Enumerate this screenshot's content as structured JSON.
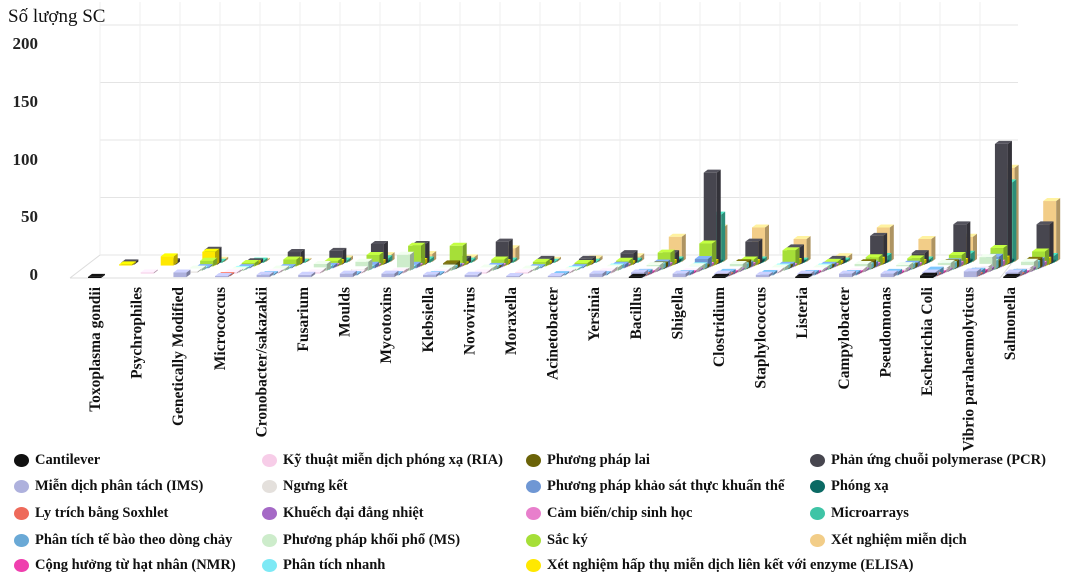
{
  "chart_data": {
    "type": "bar",
    "title": "",
    "ylabel": "Số lượng SC",
    "xlabel": "",
    "ylim": [
      0,
      220
    ],
    "yticks": [
      0,
      50,
      100,
      150,
      200
    ],
    "grid": true,
    "legend_position": "bottom",
    "categories": [
      "Toxoplasma gondii",
      "Psychrophiles",
      "Genetically Modified",
      "Micrococcus",
      "Cronobacter/sakazakii",
      "Fusarium",
      "Moulds",
      "Mycotoxins",
      "Klebsiella",
      "Novovirus",
      "Moraxella",
      "Acinetobacter",
      "Yersinia",
      "Bacillus",
      "Shigella",
      "Clostridium",
      "Staphylococcus",
      "Listeria",
      "Campylobacter",
      "Pseudomonas",
      "Escherichia Coli",
      "Vibrio parahaemolyticus",
      "Salmonella"
    ],
    "series": [
      {
        "name": "Cantilever",
        "color": "#111111",
        "values": [
          1,
          0,
          0,
          0,
          0,
          0,
          0,
          0,
          0,
          0,
          0,
          0,
          0,
          1,
          0,
          1,
          0,
          1,
          0,
          0,
          2,
          0,
          1
        ]
      },
      {
        "name": "Miễn dịch phân tách (IMS)",
        "color": "#aeb1dd",
        "values": [
          0,
          0,
          4,
          1,
          2,
          2,
          3,
          3,
          2,
          2,
          1,
          1,
          3,
          4,
          3,
          3,
          2,
          3,
          3,
          3,
          4,
          5,
          4
        ]
      },
      {
        "name": "Ly trích bằng Soxhlet",
        "color": "#ee6a5a",
        "values": [
          0,
          0,
          0,
          1,
          0,
          0,
          0,
          0,
          0,
          0,
          0,
          0,
          0,
          1,
          0,
          1,
          0,
          0,
          0,
          0,
          1,
          1,
          1
        ]
      },
      {
        "name": "Phân tích tế bào theo dòng chảy",
        "color": "#6aa9d6",
        "values": [
          0,
          0,
          0,
          0,
          1,
          0,
          1,
          1,
          1,
          0,
          0,
          1,
          1,
          3,
          2,
          3,
          2,
          2,
          2,
          3,
          5,
          4,
          3
        ]
      },
      {
        "name": "Cộng hưởng từ hạt nhân (NMR)",
        "color": "#ef3fae",
        "values": [
          0,
          0,
          0,
          0,
          0,
          0,
          0,
          0,
          0,
          0,
          0,
          0,
          0,
          1,
          1,
          1,
          0,
          1,
          1,
          1,
          1,
          2,
          1
        ]
      },
      {
        "name": "Kỹ thuật miễn dịch phóng xạ (RIA)",
        "color": "#f7cde8",
        "values": [
          0,
          1,
          0,
          1,
          1,
          1,
          1,
          2,
          1,
          1,
          1,
          1,
          2,
          2,
          2,
          2,
          1,
          1,
          2,
          1,
          2,
          3,
          2
        ]
      },
      {
        "name": "Ngưng kết",
        "color": "#e4e0dc",
        "values": [
          0,
          0,
          1,
          1,
          1,
          2,
          3,
          2,
          2,
          2,
          1,
          1,
          3,
          3,
          3,
          3,
          2,
          2,
          3,
          3,
          4,
          5,
          4
        ]
      },
      {
        "name": "Khuếch đại đẳng nhiệt",
        "color": "#a569c6",
        "values": [
          0,
          0,
          0,
          0,
          0,
          0,
          0,
          0,
          0,
          0,
          0,
          0,
          0,
          1,
          1,
          1,
          0,
          1,
          1,
          1,
          1,
          2,
          2
        ]
      },
      {
        "name": "Phương pháp khối phổ (MS)",
        "color": "#cdeccb",
        "values": [
          0,
          0,
          2,
          1,
          2,
          6,
          8,
          14,
          3,
          3,
          2,
          1,
          3,
          5,
          4,
          6,
          3,
          3,
          6,
          5,
          7,
          12,
          8
        ]
      },
      {
        "name": "Phân tích nhanh",
        "color": "#7de9f5",
        "values": [
          0,
          0,
          1,
          1,
          1,
          2,
          2,
          2,
          2,
          2,
          1,
          1,
          3,
          4,
          4,
          4,
          3,
          3,
          4,
          4,
          5,
          7,
          6
        ]
      },
      {
        "name": "Phương pháp lai",
        "color": "#6b6308",
        "values": [
          0,
          0,
          0,
          0,
          0,
          0,
          0,
          0,
          5,
          1,
          0,
          0,
          0,
          4,
          2,
          6,
          2,
          2,
          6,
          3,
          6,
          6,
          8
        ]
      },
      {
        "name": "Phương pháp khảo sát thực khuẩn thể",
        "color": "#6f97d4",
        "values": [
          0,
          0,
          1,
          1,
          1,
          2,
          3,
          3,
          2,
          2,
          1,
          1,
          3,
          5,
          8,
          4,
          3,
          3,
          4,
          4,
          6,
          10,
          7
        ]
      },
      {
        "name": "Cảm biến/chip sinh học",
        "color": "#e87fcc",
        "values": [
          0,
          0,
          0,
          0,
          0,
          1,
          1,
          1,
          1,
          1,
          0,
          0,
          1,
          2,
          2,
          2,
          1,
          1,
          2,
          2,
          3,
          4,
          3
        ]
      },
      {
        "name": "Sắc ký",
        "color": "#a6df38",
        "values": [
          0,
          0,
          5,
          3,
          6,
          5,
          10,
          18,
          18,
          6,
          4,
          3,
          5,
          12,
          20,
          6,
          14,
          4,
          8,
          7,
          10,
          16,
          13
        ]
      },
      {
        "name": "Xét nghiệm hấp thụ miễn dịch liên kết với enzyme (ELISA)",
        "color": "#ffe800",
        "values": [
          1,
          8,
          12,
          2,
          5,
          3,
          3,
          4,
          1,
          3,
          2,
          2,
          2,
          3,
          3,
          3,
          4,
          2,
          5,
          3,
          4,
          6,
          5
        ]
      },
      {
        "name": "Phản ứng chuỗi polymerase (PCR)",
        "color": "#47464f",
        "values": [
          2,
          3,
          13,
          3,
          11,
          12,
          18,
          18,
          5,
          20,
          5,
          5,
          10,
          10,
          80,
          20,
          15,
          5,
          25,
          10,
          35,
          105,
          35
        ]
      },
      {
        "name": "Phóng xạ",
        "color": "#0b6a64",
        "values": [
          0,
          0,
          0,
          0,
          0,
          0,
          1,
          0,
          0,
          0,
          0,
          0,
          0,
          2,
          1,
          2,
          1,
          1,
          1,
          1,
          2,
          2,
          1
        ]
      },
      {
        "name": "Microarrays",
        "color": "#3fc4a6",
        "values": [
          0,
          0,
          1,
          2,
          1,
          2,
          4,
          3,
          2,
          2,
          1,
          1,
          2,
          3,
          42,
          3,
          2,
          2,
          6,
          3,
          8,
          70,
          6
        ]
      },
      {
        "name": "Xét nghiệm miễn dịch",
        "color": "#f2cd88",
        "values": [
          0,
          0,
          2,
          1,
          1,
          3,
          6,
          7,
          4,
          12,
          2,
          3,
          5,
          22,
          30,
          30,
          20,
          5,
          30,
          20,
          22,
          82,
          53
        ]
      }
    ]
  }
}
